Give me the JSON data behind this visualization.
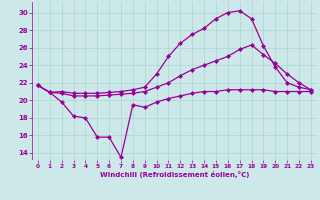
{
  "xlabel": "Windchill (Refroidissement éolien,°C)",
  "bg_color": "#cce8e8",
  "line_color": "#990099",
  "grid_color": "#b0d8d8",
  "x_ticks": [
    0,
    1,
    2,
    3,
    4,
    5,
    6,
    7,
    8,
    9,
    10,
    11,
    12,
    13,
    14,
    15,
    16,
    17,
    18,
    19,
    20,
    21,
    22,
    23
  ],
  "y_ticks": [
    14,
    16,
    18,
    20,
    22,
    24,
    26,
    28,
    30
  ],
  "xlim": [
    -0.5,
    23.5
  ],
  "ylim": [
    13.2,
    31.2
  ],
  "line1_y": [
    21.7,
    20.9,
    19.8,
    18.2,
    18.0,
    15.8,
    15.8,
    13.5,
    19.5,
    19.2,
    19.8,
    20.2,
    20.5,
    20.8,
    21.0,
    21.0,
    21.2,
    21.2,
    21.2,
    21.2,
    21.0,
    21.0,
    21.0,
    21.0
  ],
  "line2_y": [
    21.7,
    20.9,
    20.8,
    20.5,
    20.5,
    20.5,
    20.6,
    20.7,
    20.8,
    21.0,
    21.5,
    22.0,
    22.8,
    23.5,
    24.0,
    24.5,
    25.0,
    25.8,
    26.3,
    25.2,
    24.2,
    23.0,
    22.0,
    21.2
  ],
  "line3_y": [
    21.7,
    20.9,
    21.0,
    20.8,
    20.8,
    20.8,
    20.9,
    21.0,
    21.2,
    21.5,
    23.0,
    25.0,
    26.5,
    27.5,
    28.2,
    29.3,
    30.0,
    30.2,
    29.3,
    26.2,
    23.8,
    22.0,
    21.5,
    21.2
  ],
  "marker": "D",
  "marker_size": 2.0,
  "linewidth": 0.9
}
